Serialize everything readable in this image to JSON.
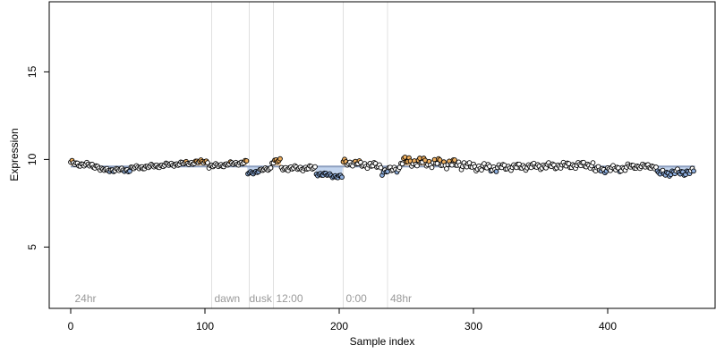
{
  "chart_data": {
    "type": "scatter",
    "xlabel": "Sample index",
    "ylabel": "Expression",
    "xlim": [
      -16,
      480
    ],
    "ylim": [
      1.5,
      19
    ],
    "xticks": [
      0,
      100,
      200,
      300,
      400
    ],
    "yticks": [
      5,
      10,
      15
    ],
    "baseline": 9.6,
    "colors": {
      "above": "#f0b060",
      "below": "#8fb0e0",
      "neutral": "#ffffff",
      "baseline": "#8ea0c0",
      "divider": "#e0e0e0",
      "annotation": "#9a9a9a"
    },
    "annotations": [
      {
        "label": "24hr",
        "x": 3
      },
      {
        "label": "dawn",
        "x": 107
      },
      {
        "label": "dusk",
        "x": 133
      },
      {
        "label": "12:00",
        "x": 153
      },
      {
        "label": "0:00",
        "x": 205
      },
      {
        "label": "48hr",
        "x": 238
      }
    ],
    "dividers": [
      105,
      133,
      151,
      203,
      236
    ],
    "segments": [
      {
        "from": 0,
        "to": 22,
        "start": 9.8,
        "end": 9.6,
        "amp": 0.15
      },
      {
        "from": 22,
        "to": 45,
        "start": 9.4,
        "end": 9.4,
        "amp": 0.12
      },
      {
        "from": 45,
        "to": 103,
        "start": 9.5,
        "end": 9.9,
        "amp": 0.12
      },
      {
        "from": 103,
        "to": 132,
        "start": 9.6,
        "end": 9.85,
        "amp": 0.12
      },
      {
        "from": 132,
        "to": 150,
        "start": 9.2,
        "end": 9.5,
        "amp": 0.1
      },
      {
        "from": 150,
        "to": 157,
        "start": 9.9,
        "end": 9.9,
        "amp": 0.15
      },
      {
        "from": 157,
        "to": 183,
        "start": 9.5,
        "end": 9.5,
        "amp": 0.15
      },
      {
        "from": 183,
        "to": 203,
        "start": 9.2,
        "end": 9.0,
        "amp": 0.12
      },
      {
        "from": 203,
        "to": 232,
        "start": 9.85,
        "end": 9.6,
        "amp": 0.2
      },
      {
        "from": 232,
        "to": 246,
        "start": 9.3,
        "end": 9.5,
        "amp": 0.2
      },
      {
        "from": 246,
        "to": 296,
        "start": 9.9,
        "end": 9.7,
        "amp": 0.3
      },
      {
        "from": 296,
        "to": 320,
        "start": 9.6,
        "end": 9.5,
        "amp": 0.25
      },
      {
        "from": 320,
        "to": 390,
        "start": 9.55,
        "end": 9.7,
        "amp": 0.2
      },
      {
        "from": 390,
        "to": 415,
        "start": 9.4,
        "end": 9.5,
        "amp": 0.2
      },
      {
        "from": 415,
        "to": 437,
        "start": 9.6,
        "end": 9.6,
        "amp": 0.15
      },
      {
        "from": 437,
        "to": 465,
        "start": 9.2,
        "end": 9.3,
        "amp": 0.2
      }
    ]
  }
}
